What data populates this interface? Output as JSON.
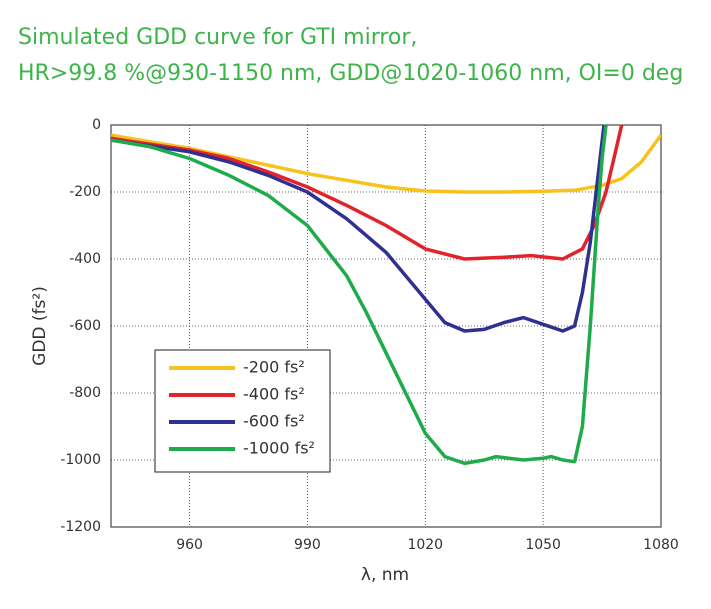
{
  "chart_data": {
    "type": "line",
    "title": "Simulated GDD curve for GTI mirror,",
    "subtitle": "HR>99.8 %@930-1150 nm, GDD@1020-1060 nm, OI=0 deg",
    "x_label": "λ, nm",
    "y_label": "GDD (fs²)",
    "xlim": [
      940,
      1080
    ],
    "xticks": [
      960,
      990,
      1020,
      1050,
      1080
    ],
    "ylim": [
      -1200,
      0
    ],
    "yticks": [
      -1200,
      -1000,
      -800,
      -600,
      -400,
      -200,
      0
    ],
    "grid": true,
    "series": [
      {
        "name": "-200 fs²",
        "color": "#f7c21b",
        "x": [
          940,
          950,
          960,
          970,
          980,
          990,
          1000,
          1010,
          1020,
          1030,
          1040,
          1050,
          1058,
          1065,
          1070,
          1075,
          1080
        ],
        "values": [
          -30,
          -50,
          -70,
          -95,
          -120,
          -145,
          -165,
          -185,
          -197,
          -200,
          -200,
          -198,
          -195,
          -180,
          -160,
          -110,
          -30
        ]
      },
      {
        "name": "-400 fs²",
        "color": "#e3222b",
        "x": [
          940,
          960,
          970,
          980,
          990,
          1000,
          1010,
          1020,
          1030,
          1040,
          1047,
          1055,
          1060,
          1063,
          1066,
          1068,
          1070
        ],
        "values": [
          -40,
          -75,
          -100,
          -140,
          -185,
          -240,
          -300,
          -370,
          -400,
          -395,
          -390,
          -400,
          -370,
          -300,
          -200,
          -100,
          0
        ]
      },
      {
        "name": "-600 fs²",
        "color": "#2e3192",
        "x": [
          940,
          960,
          970,
          980,
          990,
          1000,
          1010,
          1020,
          1025,
          1030,
          1035,
          1040,
          1045,
          1050,
          1055,
          1058,
          1060,
          1062,
          1064,
          1065.5
        ],
        "values": [
          -45,
          -80,
          -110,
          -150,
          -200,
          -280,
          -380,
          -520,
          -590,
          -615,
          -610,
          -590,
          -575,
          -595,
          -615,
          -600,
          -500,
          -350,
          -150,
          0
        ]
      },
      {
        "name": "-1000 fs²",
        "color": "#1faa4b",
        "x": [
          940,
          950,
          960,
          970,
          980,
          990,
          1000,
          1005,
          1010,
          1015,
          1020,
          1025,
          1030,
          1035,
          1038,
          1045,
          1050,
          1052,
          1055,
          1058,
          1060,
          1062,
          1064,
          1065,
          1066
        ],
        "values": [
          -45,
          -65,
          -100,
          -150,
          -210,
          -300,
          -450,
          -560,
          -680,
          -800,
          -920,
          -990,
          -1010,
          -1000,
          -990,
          -1000,
          -995,
          -990,
          -1000,
          -1005,
          -900,
          -600,
          -250,
          -100,
          0
        ]
      }
    ]
  }
}
